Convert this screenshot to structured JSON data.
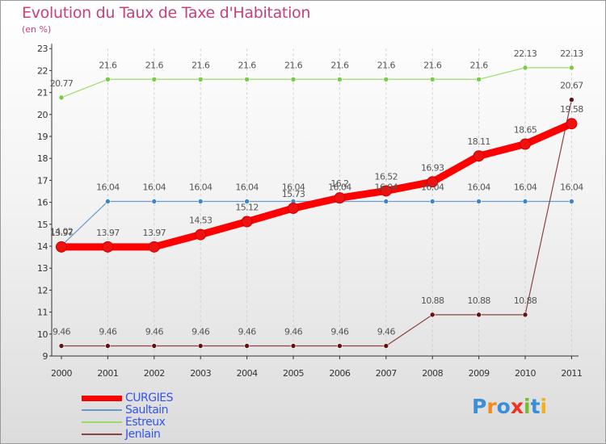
{
  "header": {
    "title": "Evolution du Taux de Taxe d'Habitation",
    "subtitle": "(en %)"
  },
  "chart_data": {
    "type": "line",
    "title": "Evolution du Taux de Taxe d'Habitation",
    "ylabel": "(en %)",
    "x": [
      "2000",
      "2001",
      "2002",
      "2003",
      "2004",
      "2005",
      "2006",
      "2007",
      "2008",
      "2009",
      "2010",
      "2011"
    ],
    "ylim": [
      9,
      23
    ],
    "yticks": [
      9,
      10,
      11,
      12,
      13,
      14,
      15,
      16,
      17,
      18,
      19,
      20,
      21,
      22,
      23
    ],
    "grid": "vertical dashed",
    "legend": "bottom-left",
    "series": [
      {
        "name": "CURGIES",
        "color": "#ff0000",
        "point_color": "#ee1111",
        "label_color": "#555555",
        "values": [
          13.97,
          13.97,
          13.97,
          14.53,
          15.12,
          15.73,
          16.2,
          16.52,
          16.93,
          18.11,
          18.65,
          19.58
        ],
        "labels": [
          "13.97",
          "13.97",
          "13.97",
          "14.53",
          "15.12",
          "15.73",
          "16.2",
          "16.52",
          "16.93",
          "18.11",
          "18.65",
          "19.58"
        ]
      },
      {
        "name": "Saultain",
        "color": "#6699cc",
        "point_color": "#3d86c6",
        "values": [
          14.02,
          16.04,
          16.04,
          16.04,
          16.04,
          16.04,
          16.04,
          16.04,
          16.04,
          16.04,
          16.04,
          16.04
        ],
        "labels": [
          "14.02",
          "16.04",
          "16.04",
          "16.04",
          "16.04",
          "16.04",
          "16.04",
          "16.04",
          "16.04",
          "16.04",
          "16.04",
          "16.04"
        ]
      },
      {
        "name": "Estreux",
        "color": "#99dd66",
        "point_color": "#77cc44",
        "values": [
          20.77,
          21.6,
          21.6,
          21.6,
          21.6,
          21.6,
          21.6,
          21.6,
          21.6,
          21.6,
          22.13,
          22.13
        ],
        "labels": [
          "20.77",
          "21.6",
          "21.6",
          "21.6",
          "21.6",
          "21.6",
          "21.6",
          "21.6",
          "21.6",
          "21.6",
          "22.13",
          "22.13"
        ]
      },
      {
        "name": "Jenlain",
        "color": "#884444",
        "point_color": "#661111",
        "values": [
          9.46,
          9.46,
          9.46,
          9.46,
          9.46,
          9.46,
          9.46,
          9.46,
          10.88,
          10.88,
          10.88,
          20.67
        ],
        "labels": [
          "9.46",
          "9.46",
          "9.46",
          "9.46",
          "9.46",
          "9.46",
          "9.46",
          "9.46",
          "10.88",
          "10.88",
          "10.88",
          "20.67"
        ]
      }
    ]
  },
  "legend": {
    "items": [
      {
        "label": "CURGIES",
        "color": "#ff0000",
        "thickness": 7
      },
      {
        "label": "Saultain",
        "color": "#6699cc",
        "thickness": 1.5
      },
      {
        "label": "Estreux",
        "color": "#99dd66",
        "thickness": 1.5
      },
      {
        "label": "Jenlain",
        "color": "#884444",
        "thickness": 1.5
      }
    ]
  },
  "logo": {
    "text": "Proxiti",
    "letters": [
      {
        "ch": "P",
        "color": "#3a8fd8"
      },
      {
        "ch": "r",
        "color": "#f28c1c"
      },
      {
        "ch": "o",
        "color": "#3a8fd8"
      },
      {
        "ch": "x",
        "color": "#ee3322"
      },
      {
        "ch": "i",
        "color": "#77bb33"
      },
      {
        "ch": "t",
        "color": "#3a8fd8"
      },
      {
        "ch": "i",
        "color": "#f2b01c"
      }
    ]
  }
}
